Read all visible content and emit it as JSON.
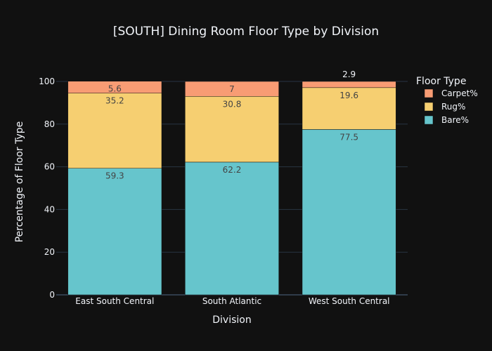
{
  "chart_data": {
    "type": "bar",
    "stacked": true,
    "title": "[SOUTH] Dining Room Floor Type by Division",
    "xlabel": "Division",
    "ylabel": "Percentage of Floor Type",
    "ylim": [
      0,
      100
    ],
    "yticks": [
      0,
      20,
      40,
      60,
      80,
      100
    ],
    "categories": [
      "East South Central",
      "South Atlantic",
      "West South Central"
    ],
    "series": [
      {
        "name": "Bare%",
        "values": [
          59.3,
          62.2,
          77.5
        ],
        "color": "#66c5cc"
      },
      {
        "name": "Rug%",
        "values": [
          35.2,
          30.8,
          19.6
        ],
        "color": "#f6cf71"
      },
      {
        "name": "Carpet%",
        "values": [
          5.6,
          7,
          2.9
        ],
        "color": "#f89c74"
      }
    ],
    "legend": {
      "title": "Floor Type",
      "placement": "right",
      "order": [
        "Carpet%",
        "Rug%",
        "Bare%"
      ]
    },
    "grid": true
  },
  "colors": {
    "background": "#111111",
    "grid": "#283442",
    "text": "#f2f5fa",
    "label_dark": "#444444",
    "bar_outline": "#111111"
  }
}
